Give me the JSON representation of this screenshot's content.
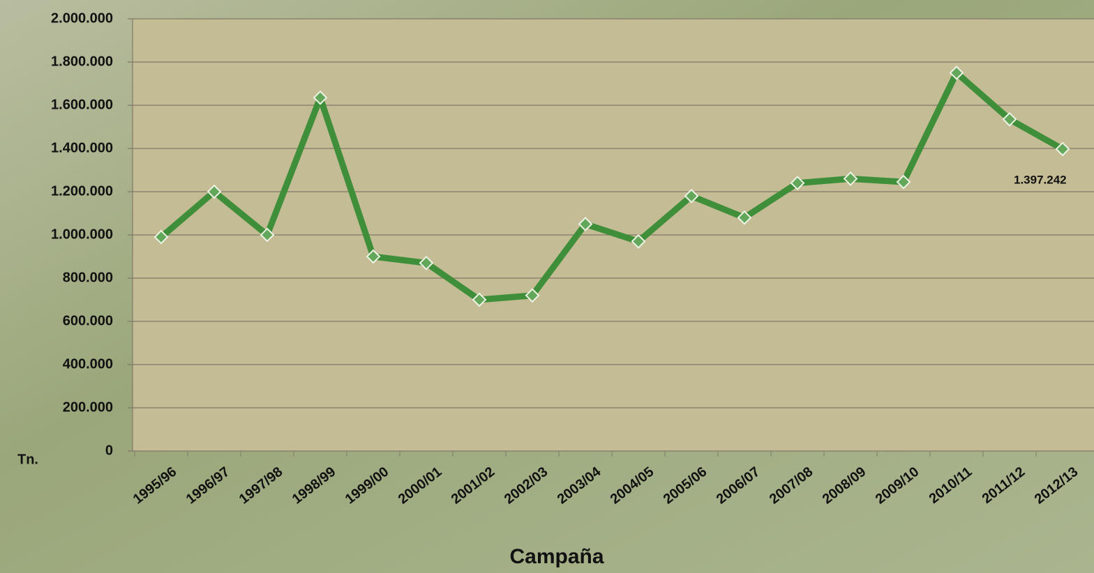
{
  "chart_data": {
    "type": "line",
    "x_label": "Campaña",
    "y_label": "Tn.",
    "categories": [
      "1995/96",
      "1996/97",
      "1997/98",
      "1998/99",
      "1999/00",
      "2000/01",
      "2001/02",
      "2002/03",
      "2003/04",
      "2004/05",
      "2005/06",
      "2006/07",
      "2007/08",
      "2008/09",
      "2009/10",
      "2010/11",
      "2011/12",
      "2012/13"
    ],
    "series": [
      {
        "color": "#3f8f3a",
        "values": [
          990000,
          1200000,
          1000000,
          1635000,
          900000,
          870000,
          700000,
          720000,
          1050000,
          970000,
          1180000,
          1080000,
          1240000,
          1260000,
          1245000,
          1750000,
          1535000,
          1397242
        ],
        "value_labels": [
          null,
          null,
          null,
          null,
          null,
          null,
          null,
          null,
          null,
          null,
          null,
          null,
          null,
          null,
          null,
          null,
          null,
          "1.397.242"
        ]
      }
    ],
    "ylim": [
      0,
      2000000
    ],
    "yticks": [
      0,
      {
        "value": 200000,
        "label": "200.000"
      },
      {
        "value": 400000,
        "label": "400.000"
      },
      {
        "value": 600000,
        "label": "600.000"
      },
      {
        "value": 800000,
        "label": "800.000"
      },
      {
        "value": 1000000,
        "label": "1.000.000"
      },
      {
        "value": 1200000,
        "label": "1.200.000"
      },
      {
        "value": 1400000,
        "label": "1.400.000"
      },
      {
        "value": 1600000,
        "label": "1.600.000"
      },
      {
        "value": 1800000,
        "label": "1.800.000"
      },
      {
        "value": 2000000,
        "label": "2.000.000"
      }
    ],
    "grid": true
  }
}
